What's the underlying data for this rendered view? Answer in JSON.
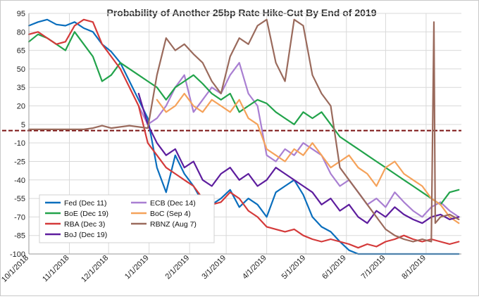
{
  "chart_data": {
    "type": "line",
    "title": "Probability  of Another 25bp Rate Hike-Cut By End of 2019",
    "xlabel": "",
    "ylabel": "",
    "ylim": [
      -100,
      95
    ],
    "yticks": [
      95,
      80,
      65,
      50,
      35,
      20,
      5,
      -10,
      -25,
      -40,
      -55,
      -70,
      -85,
      -100
    ],
    "xlim": [
      "2018-10-01",
      "2019-08-28"
    ],
    "xticks": [
      "10/1/2018",
      "11/1/2018",
      "12/1/2018",
      "1/1/2019",
      "2/1/2019",
      "3/1/2019",
      "4/1/2019",
      "5/1/2019",
      "6/1/2019",
      "7/1/2019",
      "8/1/2019"
    ],
    "grid": true,
    "reference_line": {
      "y": 0,
      "color": "#7b1212",
      "style": "dashed"
    },
    "legend": {
      "placement": "bottom-left",
      "columns": 2
    },
    "series": [
      {
        "name": "Fed (Dec 11)",
        "color": "#0a6ebd",
        "x": [
          "2018-10-01",
          "2018-10-08",
          "2018-10-15",
          "2018-10-22",
          "2018-10-29",
          "2018-11-05",
          "2018-11-12",
          "2018-11-19",
          "2018-11-26",
          "2018-12-03",
          "2018-12-10",
          "2018-12-17",
          "2018-12-24",
          "2018-12-31",
          "2019-01-07",
          "2019-01-14",
          "2019-01-21",
          "2019-01-28",
          "2019-02-04",
          "2019-02-11",
          "2019-02-18",
          "2019-02-25",
          "2019-03-04",
          "2019-03-11",
          "2019-03-18",
          "2019-03-25",
          "2019-04-01",
          "2019-04-08",
          "2019-04-15",
          "2019-04-22",
          "2019-04-29",
          "2019-05-06",
          "2019-05-13",
          "2019-05-20",
          "2019-05-27",
          "2019-06-03",
          "2019-06-10",
          "2019-06-17",
          "2019-06-24",
          "2019-07-01",
          "2019-07-08",
          "2019-07-15",
          "2019-07-22",
          "2019-07-29",
          "2019-08-05",
          "2019-08-12",
          "2019-08-19",
          "2019-08-26"
        ],
        "values": [
          85,
          88,
          90,
          86,
          85,
          88,
          83,
          80,
          70,
          64,
          55,
          40,
          25,
          10,
          -30,
          -50,
          -20,
          -35,
          -45,
          -58,
          -60,
          -55,
          -48,
          -62,
          -55,
          -60,
          -70,
          -50,
          -45,
          -40,
          -52,
          -70,
          -78,
          -82,
          -90,
          -97,
          -100,
          -100,
          -100,
          -100,
          -100,
          -100,
          -100,
          -100,
          -100,
          -100,
          -100,
          -100
        ]
      },
      {
        "name": "ECB (Dec 14)",
        "color": "#a97fd2",
        "x": [
          "2018-12-24",
          "2018-12-31",
          "2019-01-07",
          "2019-01-14",
          "2019-01-21",
          "2019-01-28",
          "2019-02-04",
          "2019-02-11",
          "2019-02-18",
          "2019-02-25",
          "2019-03-04",
          "2019-03-11",
          "2019-03-18",
          "2019-03-25",
          "2019-04-01",
          "2019-04-08",
          "2019-04-15",
          "2019-04-22",
          "2019-04-29",
          "2019-05-06",
          "2019-05-13",
          "2019-05-20",
          "2019-05-27",
          "2019-06-03",
          "2019-06-10",
          "2019-06-17",
          "2019-06-24",
          "2019-07-01",
          "2019-07-08",
          "2019-07-15",
          "2019-07-22",
          "2019-07-29",
          "2019-08-05",
          "2019-08-12",
          "2019-08-19",
          "2019-08-26"
        ],
        "values": [
          20,
          5,
          10,
          20,
          35,
          45,
          15,
          25,
          35,
          30,
          45,
          55,
          30,
          20,
          -20,
          -25,
          -15,
          -20,
          -10,
          -15,
          -20,
          -35,
          -45,
          -40,
          -50,
          -60,
          -55,
          -62,
          -50,
          -58,
          -65,
          -70,
          -62,
          -58,
          -65,
          -70
        ]
      },
      {
        "name": "BoE (Dec 19)",
        "color": "#22a34b",
        "x": [
          "2018-10-01",
          "2018-10-08",
          "2018-10-15",
          "2018-10-22",
          "2018-10-29",
          "2018-11-05",
          "2018-11-12",
          "2018-11-19",
          "2018-11-26",
          "2018-12-03",
          "2018-12-10",
          "2018-12-17",
          "2018-12-24",
          "2018-12-31",
          "2019-01-07",
          "2019-01-14",
          "2019-01-21",
          "2019-01-28",
          "2019-02-04",
          "2019-02-11",
          "2019-02-18",
          "2019-02-25",
          "2019-03-04",
          "2019-03-11",
          "2019-03-18",
          "2019-03-25",
          "2019-04-01",
          "2019-04-08",
          "2019-04-15",
          "2019-04-22",
          "2019-04-29",
          "2019-05-06",
          "2019-05-13",
          "2019-05-20",
          "2019-05-27",
          "2019-06-03",
          "2019-06-10",
          "2019-06-17",
          "2019-06-24",
          "2019-07-01",
          "2019-07-08",
          "2019-07-15",
          "2019-07-22",
          "2019-07-29",
          "2019-08-05",
          "2019-08-12",
          "2019-08-19",
          "2019-08-26"
        ],
        "values": [
          72,
          78,
          75,
          70,
          65,
          80,
          70,
          60,
          40,
          45,
          55,
          50,
          45,
          40,
          35,
          25,
          35,
          40,
          45,
          38,
          30,
          25,
          30,
          15,
          20,
          25,
          22,
          15,
          10,
          5,
          15,
          10,
          15,
          5,
          -5,
          -10,
          -15,
          -20,
          -25,
          -30,
          -35,
          -40,
          -45,
          -50,
          -55,
          -60,
          -50,
          -48
        ]
      },
      {
        "name": "BoC (Sep 4)",
        "color": "#f5a25a",
        "x": [
          "2019-01-07",
          "2019-01-14",
          "2019-01-21",
          "2019-01-28",
          "2019-02-04",
          "2019-02-11",
          "2019-02-18",
          "2019-02-25",
          "2019-03-04",
          "2019-03-11",
          "2019-03-18",
          "2019-03-25",
          "2019-04-01",
          "2019-04-08",
          "2019-04-15",
          "2019-04-22",
          "2019-04-29",
          "2019-05-06",
          "2019-05-13",
          "2019-05-20",
          "2019-05-27",
          "2019-06-03",
          "2019-06-10",
          "2019-06-17",
          "2019-06-24",
          "2019-07-01",
          "2019-07-08",
          "2019-07-15",
          "2019-07-22",
          "2019-07-29",
          "2019-08-05",
          "2019-08-12",
          "2019-08-19",
          "2019-08-26"
        ],
        "values": [
          25,
          15,
          20,
          30,
          20,
          15,
          25,
          20,
          15,
          25,
          10,
          5,
          -15,
          -20,
          -25,
          -15,
          -20,
          -10,
          -20,
          -30,
          -25,
          -20,
          -30,
          -35,
          -45,
          -30,
          -25,
          -35,
          -40,
          -45,
          -55,
          -60,
          -70,
          -75
        ]
      },
      {
        "name": "RBA (Dec 3)",
        "color": "#d43a3a",
        "x": [
          "2018-10-01",
          "2018-10-08",
          "2018-10-15",
          "2018-10-22",
          "2018-10-29",
          "2018-11-05",
          "2018-11-12",
          "2018-11-19",
          "2018-11-26",
          "2018-12-03",
          "2018-12-10",
          "2018-12-17",
          "2018-12-24",
          "2018-12-31",
          "2019-01-07",
          "2019-01-14",
          "2019-01-21",
          "2019-01-28",
          "2019-02-04",
          "2019-02-11",
          "2019-02-18",
          "2019-02-25",
          "2019-03-04",
          "2019-03-11",
          "2019-03-18",
          "2019-03-25",
          "2019-04-01",
          "2019-04-08",
          "2019-04-15",
          "2019-04-22",
          "2019-04-29",
          "2019-05-06",
          "2019-05-13",
          "2019-05-20",
          "2019-05-27",
          "2019-06-03",
          "2019-06-10",
          "2019-06-17",
          "2019-06-24",
          "2019-07-01",
          "2019-07-08",
          "2019-07-15",
          "2019-07-22",
          "2019-07-29",
          "2019-08-05",
          "2019-08-12",
          "2019-08-19",
          "2019-08-26"
        ],
        "values": [
          78,
          80,
          75,
          70,
          72,
          85,
          90,
          88,
          70,
          60,
          50,
          35,
          20,
          -10,
          -20,
          -30,
          -35,
          -40,
          -45,
          -55,
          -60,
          -58,
          -50,
          -55,
          -65,
          -70,
          -78,
          -80,
          -82,
          -80,
          -85,
          -88,
          -90,
          -88,
          -90,
          -92,
          -95,
          -92,
          -94,
          -90,
          -88,
          -85,
          -88,
          -90,
          -88,
          -90,
          -92,
          -90
        ]
      },
      {
        "name": "BoJ (Dec 19)",
        "color": "#5d1d9e",
        "x": [
          "2018-12-24",
          "2018-12-31",
          "2019-01-07",
          "2019-01-14",
          "2019-01-21",
          "2019-01-28",
          "2019-02-04",
          "2019-02-11",
          "2019-02-18",
          "2019-02-25",
          "2019-03-04",
          "2019-03-11",
          "2019-03-18",
          "2019-03-25",
          "2019-04-01",
          "2019-04-08",
          "2019-04-15",
          "2019-04-22",
          "2019-04-29",
          "2019-05-06",
          "2019-05-13",
          "2019-05-20",
          "2019-05-27",
          "2019-06-03",
          "2019-06-10",
          "2019-06-17",
          "2019-06-24",
          "2019-07-01",
          "2019-07-08",
          "2019-07-15",
          "2019-07-22",
          "2019-07-29",
          "2019-08-05",
          "2019-08-12",
          "2019-08-19",
          "2019-08-26"
        ],
        "values": [
          30,
          5,
          -10,
          -20,
          -15,
          -30,
          -25,
          -40,
          -45,
          -35,
          -30,
          -40,
          -35,
          -45,
          -40,
          -30,
          -35,
          -40,
          -45,
          -50,
          -60,
          -55,
          -65,
          -60,
          -70,
          -75,
          -65,
          -70,
          -62,
          -68,
          -72,
          -75,
          -70,
          -68,
          -72,
          -70
        ]
      },
      {
        "name": "RBNZ (Aug 7)",
        "color": "#9a6a5c",
        "x": [
          "2018-10-01",
          "2018-10-08",
          "2018-10-15",
          "2018-10-22",
          "2018-10-29",
          "2018-11-05",
          "2018-11-12",
          "2018-11-19",
          "2018-11-26",
          "2018-12-03",
          "2018-12-10",
          "2018-12-17",
          "2018-12-24",
          "2018-12-31",
          "2019-01-07",
          "2019-01-14",
          "2019-01-21",
          "2019-01-28",
          "2019-02-04",
          "2019-02-11",
          "2019-02-18",
          "2019-02-25",
          "2019-03-04",
          "2019-03-11",
          "2019-03-18",
          "2019-03-25",
          "2019-04-01",
          "2019-04-08",
          "2019-04-15",
          "2019-04-22",
          "2019-04-29",
          "2019-05-06",
          "2019-05-13",
          "2019-05-20",
          "2019-05-27",
          "2019-06-03",
          "2019-06-10",
          "2019-06-17",
          "2019-06-24",
          "2019-07-01",
          "2019-07-08",
          "2019-07-15",
          "2019-07-22",
          "2019-07-29",
          "2019-08-05",
          "2019-08-07",
          "2019-08-08",
          "2019-08-12",
          "2019-08-19",
          "2019-08-26"
        ],
        "values": [
          1,
          1,
          1,
          1,
          1,
          1,
          1,
          2,
          4,
          2,
          3,
          4,
          3,
          2,
          45,
          75,
          65,
          70,
          62,
          55,
          40,
          30,
          60,
          75,
          70,
          85,
          90,
          55,
          40,
          90,
          85,
          45,
          30,
          20,
          -30,
          -40,
          -50,
          -60,
          -70,
          -80,
          -85,
          -88,
          -90,
          -88,
          -90,
          88,
          -75,
          -70,
          -68,
          -72
        ]
      }
    ]
  }
}
